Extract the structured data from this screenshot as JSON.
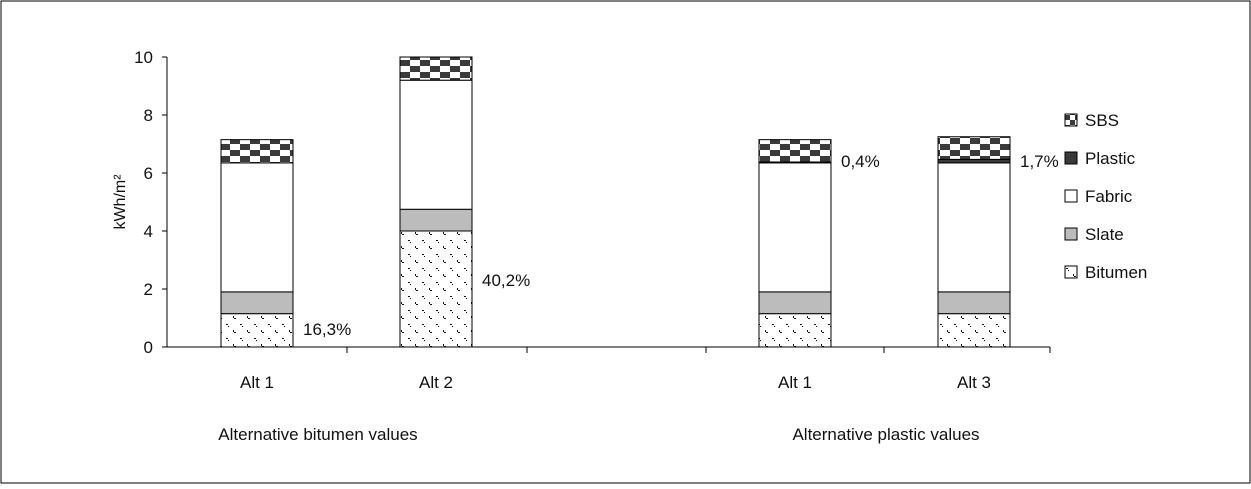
{
  "chart_data": {
    "type": "bar",
    "stacked": true,
    "ylabel": "kWh/m²",
    "ylim": [
      0,
      10
    ],
    "yticks": [
      0,
      2,
      4,
      6,
      8,
      10
    ],
    "grid": false,
    "legend_position": "right",
    "layers": [
      "Bitumen",
      "Slate",
      "Fabric",
      "Plastic",
      "SBS"
    ],
    "legend_order": [
      "SBS",
      "Plastic",
      "Fabric",
      "Slate",
      "Bitumen"
    ],
    "groups": [
      {
        "name": "Alternative bitumen values",
        "bars": [
          {
            "label": "Alt 1",
            "values": {
              "Bitumen": 1.15,
              "Slate": 0.75,
              "Fabric": 4.45,
              "Plastic": 0.0,
              "SBS": 0.8
            },
            "annotation": "16,3%",
            "annotation_at": "Bitumen"
          },
          {
            "label": "Alt 2",
            "values": {
              "Bitumen": 4.0,
              "Slate": 0.75,
              "Fabric": 4.45,
              "Plastic": 0.0,
              "SBS": 0.8
            },
            "annotation": "40,2%",
            "annotation_at": "Bitumen"
          }
        ]
      },
      {
        "name": "Alternative plastic values",
        "bars": [
          {
            "label": "Alt 1",
            "values": {
              "Bitumen": 1.15,
              "Slate": 0.75,
              "Fabric": 4.45,
              "Plastic": 0.03,
              "SBS": 0.77
            },
            "annotation": "0,4%",
            "annotation_at": "Plastic"
          },
          {
            "label": "Alt 3",
            "values": {
              "Bitumen": 1.15,
              "Slate": 0.75,
              "Fabric": 4.45,
              "Plastic": 0.12,
              "SBS": 0.78
            },
            "annotation": "1,7%",
            "annotation_at": "Plastic"
          }
        ]
      }
    ]
  }
}
